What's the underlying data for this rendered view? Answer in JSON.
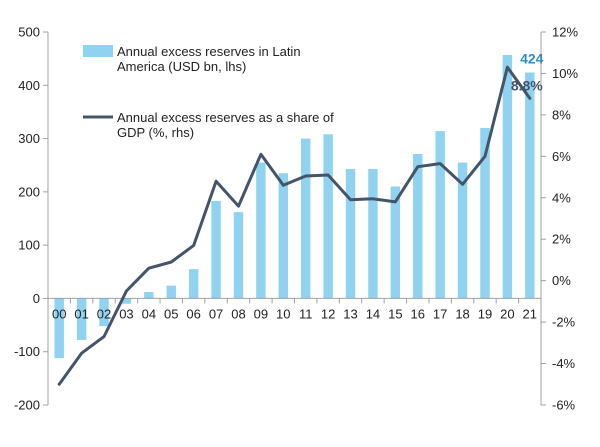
{
  "chart_data": {
    "type": "bar+line",
    "title": "",
    "xlabel": "",
    "categories": [
      "00",
      "01",
      "02",
      "03",
      "04",
      "05",
      "06",
      "07",
      "08",
      "09",
      "10",
      "11",
      "12",
      "13",
      "14",
      "15",
      "16",
      "17",
      "18",
      "19",
      "20",
      "21"
    ],
    "series": [
      {
        "name": "Annual excess reserves in Latin America (USD bn, lhs)",
        "type": "bar",
        "axis": "left",
        "color": "#8fd3f0",
        "values": [
          -112,
          -78,
          -52,
          -10,
          12,
          24,
          55,
          183,
          162,
          255,
          235,
          300,
          308,
          243,
          243,
          210,
          271,
          314,
          255,
          320,
          457,
          424
        ]
      },
      {
        "name": "Annual excess reserves as a share of GDP (%, rhs)",
        "type": "line",
        "axis": "right",
        "color": "#44546a",
        "values": [
          -5.0,
          -3.5,
          -2.7,
          -0.5,
          0.6,
          0.9,
          1.7,
          4.8,
          3.6,
          6.1,
          4.6,
          5.05,
          5.1,
          3.9,
          3.95,
          3.8,
          5.5,
          5.65,
          4.65,
          6.0,
          10.3,
          8.8
        ]
      }
    ],
    "left_axis": {
      "ylim": [
        -200,
        500
      ],
      "ticks": [
        -200,
        -100,
        0,
        100,
        200,
        300,
        400,
        500
      ],
      "labels": [
        "-200",
        "-100",
        "0",
        "100",
        "200",
        "300",
        "400",
        "500"
      ]
    },
    "right_axis": {
      "ylim": [
        -6,
        12
      ],
      "ticks": [
        -6,
        -4,
        -2,
        0,
        2,
        4,
        6,
        8,
        10,
        12
      ],
      "labels": [
        "-6%",
        "-4%",
        "-2%",
        "0%",
        "2%",
        "4%",
        "6%",
        "8%",
        "10%",
        "12%"
      ]
    },
    "grid": false,
    "legend": {
      "position": "top-left",
      "entries": [
        {
          "label_lines": [
            "Annual excess reserves in Latin",
            "America (USD bn, lhs)"
          ],
          "marker": "bar"
        },
        {
          "label_lines": [
            "Annual excess reserves as a share of",
            "GDP (%, rhs)"
          ],
          "marker": "line"
        }
      ]
    },
    "annotations": [
      {
        "text": "424",
        "color": "#2b8fc0",
        "series": 0,
        "index": 21
      },
      {
        "text": "8.8%",
        "color": "#44546a",
        "series": 1,
        "index": 21
      }
    ],
    "axis_color": "#a0a0a0"
  }
}
